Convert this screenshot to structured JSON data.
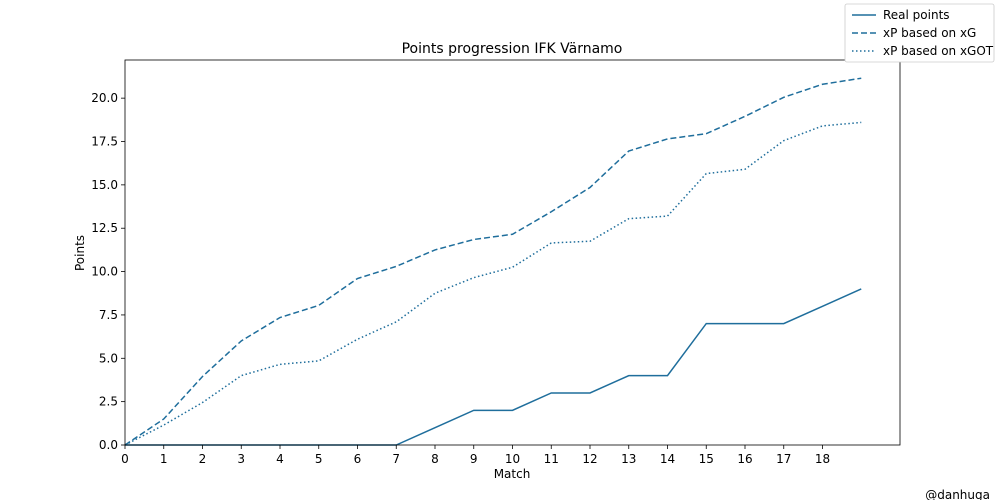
{
  "chart_data": {
    "type": "line",
    "title": "Points progression IFK Värnamo",
    "xlabel": "Match",
    "ylabel": "Points",
    "xlim": [
      0,
      20
    ],
    "ylim": [
      0,
      22.2
    ],
    "x_ticks": [
      0,
      1,
      2,
      3,
      4,
      5,
      6,
      7,
      8,
      9,
      10,
      11,
      12,
      13,
      14,
      15,
      16,
      17,
      18
    ],
    "y_ticks": [
      "0.0",
      "2.5",
      "5.0",
      "7.5",
      "10.0",
      "12.5",
      "15.0",
      "17.5",
      "20.0"
    ],
    "x": [
      0,
      1,
      2,
      3,
      4,
      5,
      6,
      7,
      8,
      9,
      10,
      11,
      12,
      13,
      14,
      15,
      16,
      17,
      18,
      19
    ],
    "grid": false,
    "legend_position": "top-right (outside plot)",
    "series": [
      {
        "name": "Real points",
        "style": "solid",
        "color": "#1f6e9c",
        "values": [
          0,
          0,
          0,
          0,
          0,
          0,
          0,
          0,
          1,
          2,
          2,
          3,
          3,
          4,
          4,
          7,
          7,
          7,
          8,
          9
        ]
      },
      {
        "name": "xP based on xG",
        "style": "dashed",
        "color": "#1f6e9c",
        "values": [
          0,
          1.5,
          3.95,
          6.0,
          7.35,
          8.05,
          9.6,
          10.3,
          11.25,
          11.85,
          12.15,
          13.45,
          14.85,
          16.95,
          17.65,
          17.95,
          18.95,
          20.05,
          20.8,
          21.15
        ]
      },
      {
        "name": "xP based on xGOT",
        "style": "dotted",
        "color": "#1f6e9c",
        "values": [
          0,
          1.15,
          2.45,
          4.0,
          4.65,
          4.85,
          6.1,
          7.1,
          8.75,
          9.65,
          10.25,
          11.65,
          11.75,
          13.05,
          13.2,
          15.65,
          15.9,
          17.55,
          18.4,
          18.6
        ]
      }
    ]
  },
  "credit": "@danhuga"
}
